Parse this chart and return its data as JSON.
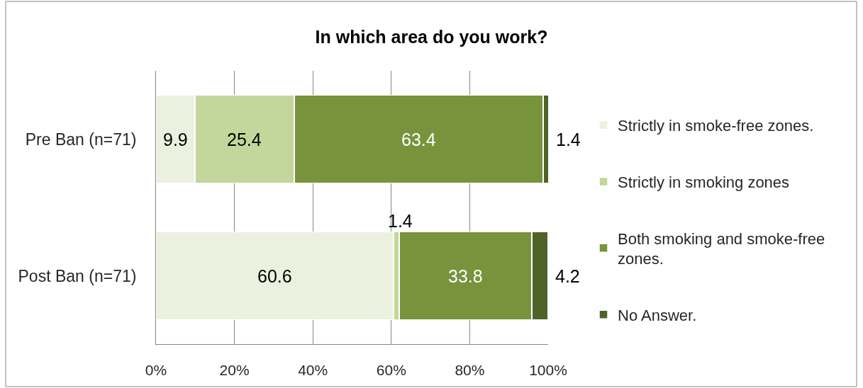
{
  "chart_data": {
    "type": "bar",
    "orientation": "horizontal",
    "stacked": true,
    "title": "In which area do you work?",
    "categories": [
      "Pre Ban (n=71)",
      "Post Ban (n=71)"
    ],
    "series": [
      {
        "name": "Strictly in smoke-free zones.",
        "color": "#ebf1de",
        "values": [
          9.9,
          60.6
        ]
      },
      {
        "name": "Strictly in smoking zones",
        "color": "#c3d69b",
        "values": [
          25.4,
          1.4
        ]
      },
      {
        "name": "Both smoking and smoke-free zones.",
        "color": "#77933c",
        "values": [
          63.4,
          33.8
        ]
      },
      {
        "name": "No Answer.",
        "color": "#4f6228",
        "values": [
          1.4,
          4.2
        ]
      }
    ],
    "xlim": [
      0,
      100
    ],
    "xticks": [
      {
        "value": 0,
        "label": "0%"
      },
      {
        "value": 20,
        "label": "20%"
      },
      {
        "value": 40,
        "label": "40%"
      },
      {
        "value": 60,
        "label": "60%"
      },
      {
        "value": 80,
        "label": "80%"
      },
      {
        "value": 100,
        "label": "100%"
      }
    ],
    "grid": "x",
    "legend": "right",
    "data_labels": true
  }
}
